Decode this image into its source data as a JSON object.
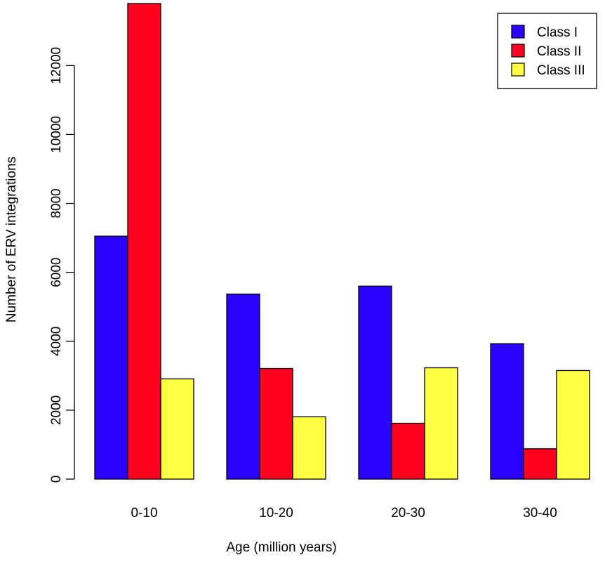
{
  "chart_data": {
    "type": "bar",
    "title": "",
    "xlabel": "Age (million years)",
    "ylabel": "Number of ERV integrations",
    "categories": [
      "0-10",
      "10-20",
      "20-30",
      "30-40"
    ],
    "series": [
      {
        "name": "Class I",
        "color": "#2A00FF",
        "values": [
          7050,
          5370,
          5600,
          3930
        ]
      },
      {
        "name": "Class II",
        "color": "#FF0020",
        "values": [
          13800,
          3210,
          1620,
          880
        ]
      },
      {
        "name": "Class III",
        "color": "#FFFF44",
        "values": [
          2910,
          1810,
          3230,
          3150
        ]
      }
    ],
    "ylim": [
      0,
      13800
    ],
    "yticks": [
      0,
      2000,
      4000,
      6000,
      8000,
      10000,
      12000
    ],
    "ytick_labels": [
      "0",
      "2000",
      "4000",
      "6000",
      "8000",
      "10000",
      "12000"
    ],
    "grid": false,
    "legend_position": "top-right"
  }
}
